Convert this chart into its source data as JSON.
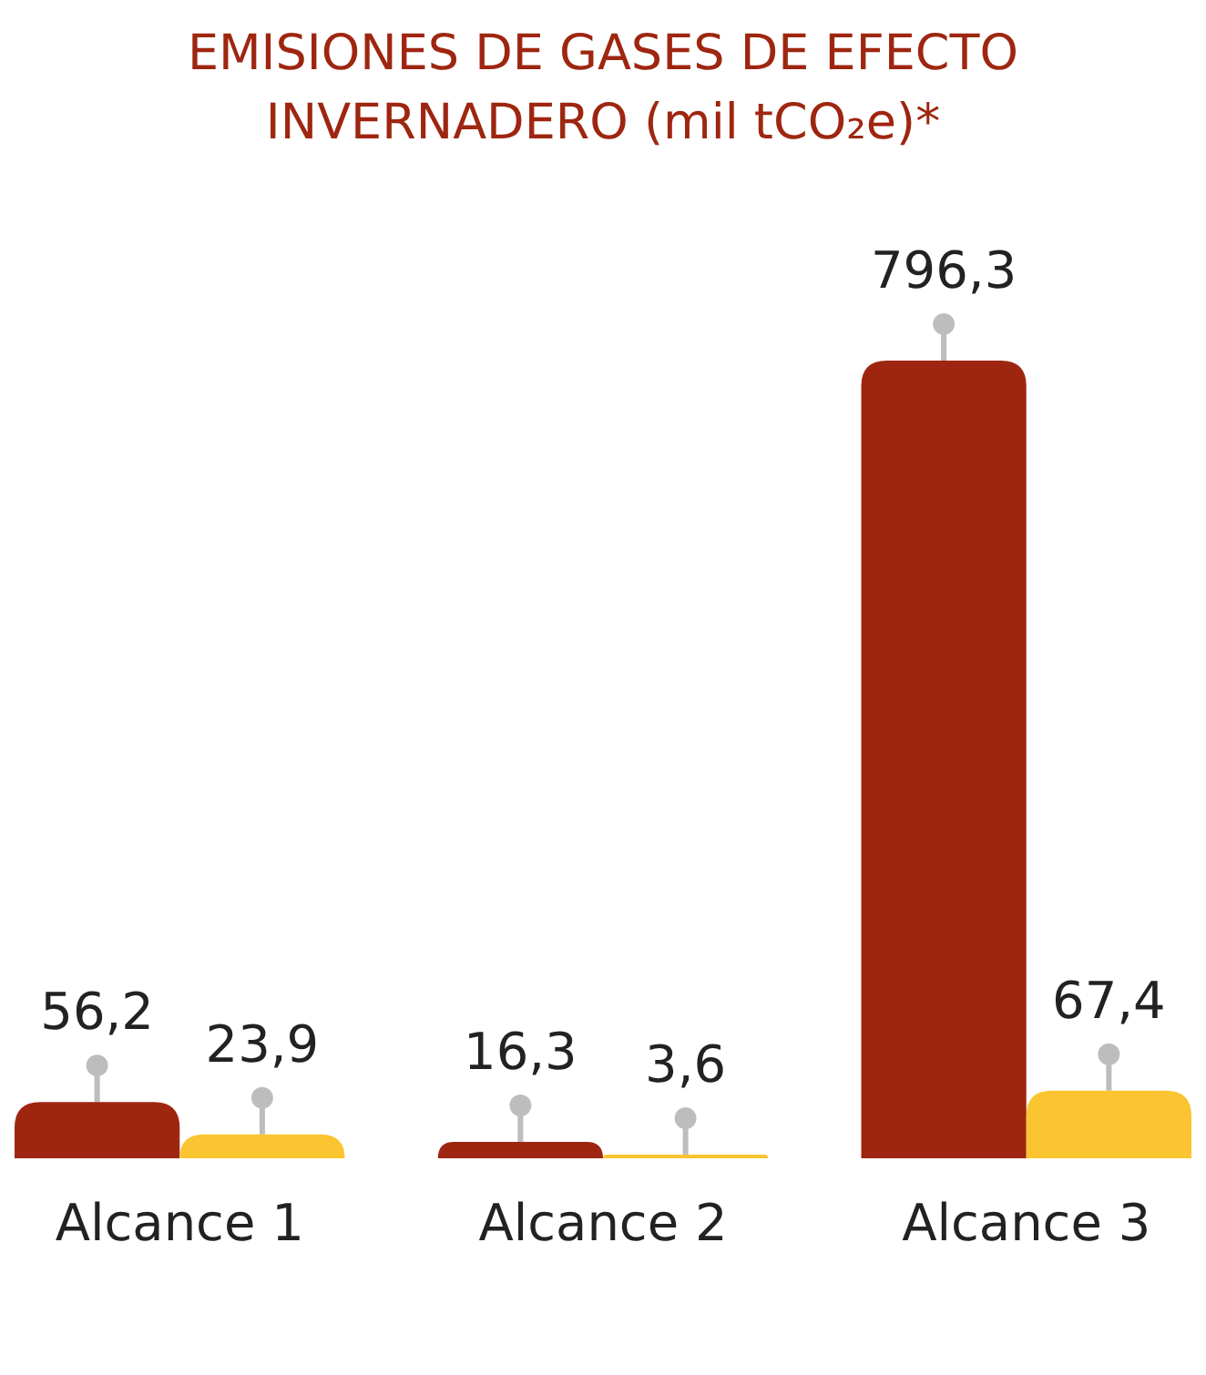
{
  "chart_data": {
    "type": "bar",
    "title": "EMISIONES DE GASES DE EFECTO INVERNADERO (mil tCO₂e)*",
    "categories": [
      "Alcance 1",
      "Alcance 2",
      "Alcance 3"
    ],
    "series": [
      {
        "color": "#9e2610",
        "values": [
          56.2,
          16.3,
          796.3
        ],
        "value_labels": [
          "56,2",
          "16,3",
          "796,3"
        ]
      },
      {
        "color": "#fbc531",
        "values": [
          23.9,
          3.6,
          67.4
        ],
        "value_labels": [
          "23,9",
          "3,6",
          "67,4"
        ]
      }
    ]
  }
}
